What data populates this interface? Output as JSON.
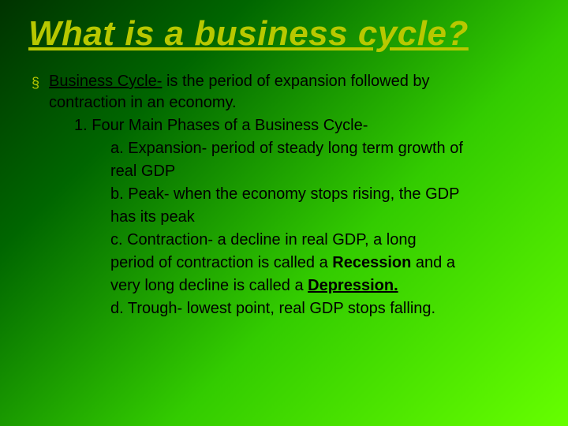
{
  "title": "What is a business cycle?",
  "bullet_term": "Business Cycle-",
  "bullet_rest_line1": " is the period of expansion followed by",
  "bullet_rest_line2": "contraction in an economy.",
  "phases_heading": "1. Four Main Phases of a Business Cycle-",
  "phase_a_line1": "a. Expansion- period of steady long term growth of",
  "phase_a_line2": "real GDP",
  "phase_b_line1": "b. Peak- when the economy stops rising, the GDP",
  "phase_b_line2": "has its peak",
  "phase_c_line1_pre": "c. Contraction- a decline in real GDP, a long",
  "phase_c_line2_pre": "period of contraction is called a ",
  "phase_c_recession": "Recession",
  "phase_c_line2_post": " and a",
  "phase_c_line3_pre": "very long decline is called a ",
  "phase_c_depression": "Depression.",
  "phase_d": "d. Trough- lowest point, real GDP stops falling.",
  "colors": {
    "title_color": "#b8c800",
    "bullet_color": "#b8c800",
    "text_color": "#000000",
    "bg_gradient_start": "#003300",
    "bg_gradient_end": "#66ff00"
  },
  "fonts": {
    "title_fontsize": 44,
    "body_fontsize": 20
  }
}
